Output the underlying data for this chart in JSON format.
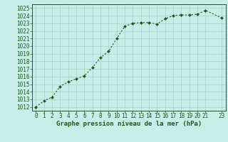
{
  "x": [
    0,
    1,
    2,
    3,
    4,
    5,
    6,
    7,
    8,
    9,
    10,
    11,
    12,
    13,
    14,
    15,
    16,
    17,
    18,
    19,
    20,
    21,
    23
  ],
  "y": [
    1012.0,
    1012.8,
    1013.3,
    1014.7,
    1015.3,
    1015.7,
    1016.1,
    1017.2,
    1018.5,
    1019.3,
    1021.0,
    1022.6,
    1023.0,
    1023.1,
    1023.1,
    1022.9,
    1023.6,
    1024.0,
    1024.1,
    1024.1,
    1024.2,
    1024.7,
    1023.7
  ],
  "xlim": [
    -0.5,
    23.5
  ],
  "ylim": [
    1011.5,
    1025.5
  ],
  "yticks": [
    1012,
    1013,
    1014,
    1015,
    1016,
    1017,
    1018,
    1019,
    1020,
    1021,
    1022,
    1023,
    1024,
    1025
  ],
  "xticks": [
    0,
    1,
    2,
    3,
    4,
    5,
    6,
    7,
    8,
    9,
    10,
    11,
    12,
    13,
    14,
    15,
    16,
    17,
    18,
    19,
    20,
    21,
    23
  ],
  "xlabel": "Graphe pression niveau de la mer (hPa)",
  "line_color": "#1a5c1a",
  "marker": "D",
  "marker_size": 2.0,
  "bg_color": "#c8ece8",
  "grid_color": "#aacfc8",
  "border_color": "#1a5c1a",
  "xlabel_fontsize": 6.5,
  "tick_fontsize": 5.5,
  "line_width": 0.8
}
